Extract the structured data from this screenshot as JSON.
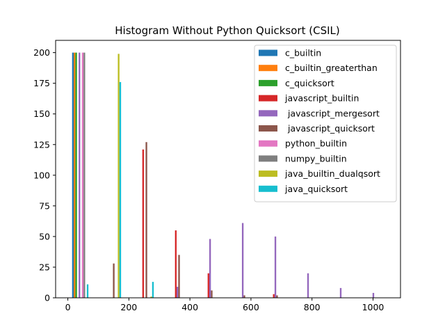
{
  "chart_data": {
    "type": "bar",
    "title": "Histogram Without Python Quicksort (CSIL)",
    "xlabel": "",
    "ylabel": "",
    "xlim": [
      -40,
      1090
    ],
    "ylim": [
      0,
      210
    ],
    "xticks": [
      0,
      200,
      400,
      600,
      800,
      1000
    ],
    "yticks": [
      0,
      25,
      50,
      75,
      100,
      125,
      150,
      175,
      200
    ],
    "grid": false,
    "legend_position": "top-right",
    "bin_start": 14,
    "bin_width": 107,
    "bar_width_data": 5.35,
    "series": [
      {
        "name": "c_builtin",
        "color": "#1f77b4",
        "values": [
          200,
          0,
          0,
          0,
          0,
          0,
          0,
          0,
          0,
          0
        ]
      },
      {
        "name": "c_builtin_greaterthan",
        "color": "#ff7f0e",
        "values": [
          200,
          0,
          0,
          0,
          0,
          0,
          0,
          0,
          0,
          0
        ]
      },
      {
        "name": "c_quicksort",
        "color": "#2ca02c",
        "values": [
          200,
          0,
          0,
          0,
          0,
          0,
          0,
          0,
          0,
          0
        ]
      },
      {
        "name": "javascript_builtin",
        "color": "#d62728",
        "values": [
          0,
          0,
          121,
          55,
          20,
          0,
          3,
          0,
          0,
          0
        ]
      },
      {
        "name": " javascript_mergesort",
        "color": "#9467bd",
        "values": [
          200,
          0,
          0,
          9,
          48,
          61,
          50,
          20,
          8,
          4
        ]
      },
      {
        "name": " javascript_quicksort",
        "color": "#8c564b",
        "values": [
          0,
          28,
          127,
          35,
          6,
          2,
          2,
          0,
          0,
          0
        ]
      },
      {
        "name": "python_builtin",
        "color": "#e377c2",
        "values": [
          200,
          0,
          0,
          0,
          0,
          0,
          0,
          0,
          0,
          0
        ]
      },
      {
        "name": "numpy_builtin",
        "color": "#7f7f7f",
        "values": [
          200,
          0,
          0,
          0,
          0,
          0,
          0,
          0,
          0,
          0
        ]
      },
      {
        "name": "java_builtin_dualqsort",
        "color": "#bcbd22",
        "values": [
          0,
          199,
          1,
          0,
          0,
          0,
          0,
          0,
          0,
          0
        ]
      },
      {
        "name": "java_quicksort",
        "color": "#17becf",
        "values": [
          11,
          176,
          13,
          0,
          0,
          0,
          0,
          0,
          0,
          0
        ]
      }
    ]
  }
}
